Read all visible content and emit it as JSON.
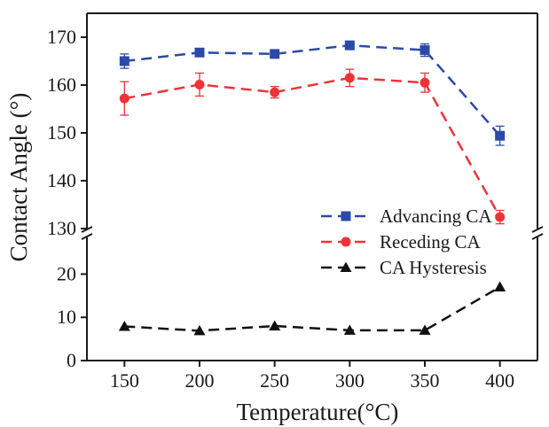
{
  "chart_data": {
    "type": "line",
    "title": "",
    "xlabel": "Temperature(°C)",
    "ylabel": "Contact Angle (°)",
    "x": [
      150,
      200,
      250,
      300,
      350,
      400
    ],
    "x_ticks": [
      "150",
      "200",
      "250",
      "300",
      "350",
      "400"
    ],
    "xlim": [
      125,
      425
    ],
    "broken_y_axis": true,
    "ylim_upper": [
      130,
      175
    ],
    "ylim_lower": [
      0,
      25
    ],
    "y_ticks_upper": [
      "130",
      "140",
      "150",
      "160",
      "170"
    ],
    "y_ticks_lower": [
      "0",
      "10",
      "20"
    ],
    "legend_position": "middle-right",
    "series": [
      {
        "name": "Advancing CA",
        "color": "#2b4aa8",
        "marker": "square",
        "line_style": "dashed",
        "panel": "upper",
        "values": [
          165.0,
          166.8,
          166.5,
          168.3,
          167.3,
          149.4
        ],
        "errors": [
          1.5,
          0.6,
          0.6,
          0.5,
          1.3,
          2.0
        ]
      },
      {
        "name": "Receding CA",
        "color": "#ee3338",
        "marker": "circle",
        "line_style": "dashed",
        "panel": "upper",
        "values": [
          157.2,
          160.1,
          158.5,
          161.5,
          160.5,
          132.4
        ],
        "errors": [
          3.5,
          2.4,
          1.2,
          1.8,
          2.0,
          1.4
        ]
      },
      {
        "name": "CA Hysteresis",
        "color": "#111111",
        "marker": "triangle",
        "line_style": "dashed",
        "panel": "lower",
        "values": [
          7.9,
          6.9,
          8.0,
          7.0,
          7.0,
          17.0
        ],
        "errors": [
          0,
          0,
          0,
          0,
          0,
          0
        ]
      }
    ]
  }
}
